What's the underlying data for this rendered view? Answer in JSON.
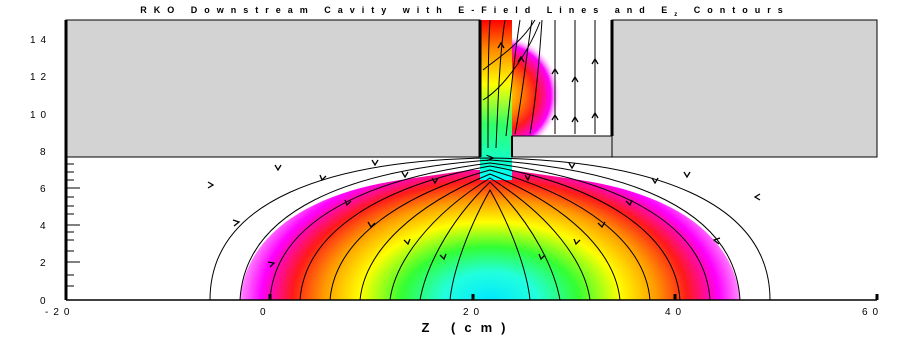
{
  "title": {
    "prefix": "RKO Downstream Cavity with E-Field Lines and E",
    "subscript": "z",
    "suffix": " Contours"
  },
  "xlabel": "Z (cm)",
  "x_ticks": [
    "-20",
    "0",
    "20",
    "40",
    "60"
  ],
  "y_ticks": [
    "0",
    "2",
    "4",
    "6",
    "8",
    "10",
    "12",
    "14"
  ],
  "colors": {
    "conductor": "#d3d3d3",
    "contour_scale": [
      "#ff00ff",
      "#ff0000",
      "#ffa500",
      "#ffff00",
      "#00ff00",
      "#00ffff"
    ]
  }
}
